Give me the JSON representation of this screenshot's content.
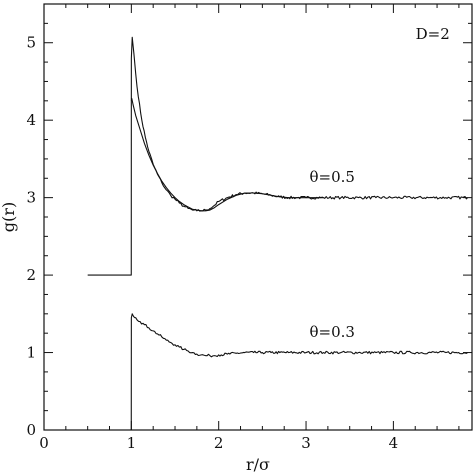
{
  "chart_data": {
    "type": "line",
    "title": "",
    "xlabel": "r/σ",
    "ylabel": "g(r)",
    "xlim": [
      0,
      4.9
    ],
    "ylim": [
      0,
      5.5
    ],
    "xticks": [
      0,
      1,
      2,
      3,
      4
    ],
    "yticks": [
      0,
      1,
      2,
      3,
      4,
      5
    ],
    "grid": false,
    "annotations": [
      {
        "text": "D=2",
        "x": 4.45,
        "y": 5.05
      },
      {
        "text": "θ=0.5",
        "x": 3.3,
        "y": 3.2
      },
      {
        "text": "θ=0.3",
        "x": 3.3,
        "y": 1.2
      }
    ],
    "series": [
      {
        "style": "noisy",
        "x": [
          0.5,
          0.999,
          1.0,
          1.01,
          1.03,
          1.05,
          1.08,
          1.12,
          1.16,
          1.2,
          1.25,
          1.3,
          1.35,
          1.4,
          1.45,
          1.5,
          1.55,
          1.6,
          1.65,
          1.7,
          1.75,
          1.8,
          1.85,
          1.9,
          1.95,
          2.0,
          2.1,
          2.2,
          2.3,
          2.4,
          2.5,
          2.6,
          2.7,
          2.8,
          2.9,
          3.0,
          3.2,
          3.4,
          3.6,
          3.8,
          4.0,
          4.2,
          4.4,
          4.6,
          4.85
        ],
        "y": [
          2.0,
          2.0,
          4.8,
          5.07,
          4.85,
          4.6,
          4.3,
          4.0,
          3.78,
          3.6,
          3.43,
          3.3,
          3.19,
          3.1,
          3.03,
          2.98,
          2.93,
          2.89,
          2.86,
          2.84,
          2.83,
          2.83,
          2.84,
          2.86,
          2.9,
          2.95,
          3.0,
          3.04,
          3.06,
          3.06,
          3.05,
          3.03,
          3.01,
          3.0,
          3.0,
          3.0,
          3.0,
          3.0,
          3.0,
          3.0,
          3.0,
          3.0,
          3.0,
          3.0,
          3.0
        ]
      },
      {
        "style": "smooth",
        "x": [
          1.0,
          1.005,
          1.02,
          1.05,
          1.1,
          1.15,
          1.2,
          1.25,
          1.3,
          1.35,
          1.4,
          1.45,
          1.5,
          1.55,
          1.6,
          1.65,
          1.7,
          1.75,
          1.8,
          1.85,
          1.9,
          1.95,
          2.0,
          2.1,
          2.2,
          2.3,
          2.4,
          2.5,
          2.6,
          2.7,
          2.8,
          2.9,
          3.0,
          3.2
        ],
        "y": [
          4.25,
          4.28,
          4.2,
          4.06,
          3.88,
          3.7,
          3.55,
          3.42,
          3.31,
          3.21,
          3.13,
          3.06,
          3.0,
          2.95,
          2.91,
          2.88,
          2.85,
          2.84,
          2.83,
          2.83,
          2.84,
          2.87,
          2.91,
          2.98,
          3.03,
          3.06,
          3.06,
          3.05,
          3.03,
          3.01,
          3.0,
          3.0,
          3.0,
          3.0
        ]
      },
      {
        "style": "noisy",
        "x": [
          0.999,
          1.0,
          1.01,
          1.05,
          1.1,
          1.15,
          1.2,
          1.25,
          1.3,
          1.35,
          1.4,
          1.45,
          1.5,
          1.55,
          1.6,
          1.65,
          1.7,
          1.75,
          1.8,
          1.85,
          1.9,
          1.95,
          2.0,
          2.1,
          2.2,
          2.3,
          2.4,
          2.5,
          2.6,
          2.7,
          2.8,
          3.0,
          3.2,
          3.4,
          3.6,
          3.8,
          4.0,
          4.2,
          4.4,
          4.6,
          4.85
        ],
        "y": [
          0.0,
          1.45,
          1.5,
          1.45,
          1.4,
          1.36,
          1.32,
          1.28,
          1.24,
          1.2,
          1.16,
          1.13,
          1.1,
          1.07,
          1.04,
          1.02,
          1.0,
          0.98,
          0.97,
          0.96,
          0.96,
          0.96,
          0.97,
          0.98,
          0.99,
          1.0,
          1.0,
          1.0,
          1.0,
          1.0,
          1.0,
          1.0,
          1.0,
          1.0,
          1.0,
          1.0,
          1.0,
          1.0,
          1.0,
          1.0,
          1.0
        ]
      }
    ]
  }
}
